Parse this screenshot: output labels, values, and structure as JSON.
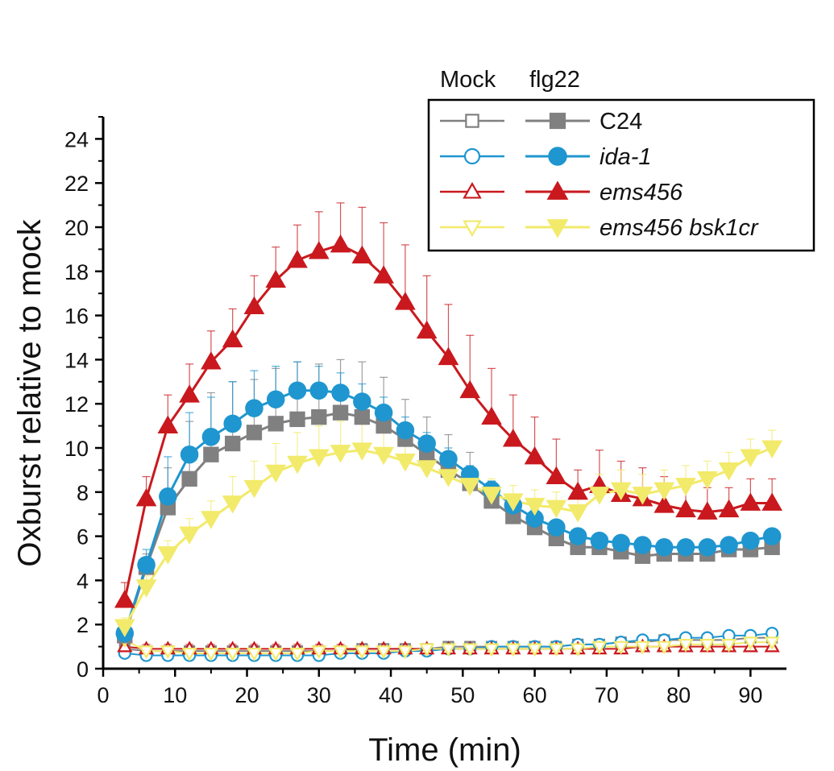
{
  "chart_data": {
    "type": "line",
    "xlabel": "Time (min)",
    "ylabel": "Oxburst relative to mock",
    "xlim": [
      0,
      95
    ],
    "ylim": [
      0,
      25
    ],
    "xticks": [
      0,
      10,
      20,
      30,
      40,
      50,
      60,
      70,
      80,
      90
    ],
    "yticks": [
      0,
      2,
      4,
      6,
      8,
      10,
      12,
      14,
      16,
      18,
      20,
      22,
      24
    ],
    "x": [
      3,
      6,
      9,
      12,
      15,
      18,
      21,
      24,
      27,
      30,
      33,
      36,
      39,
      42,
      45,
      48,
      51,
      54,
      57,
      60,
      63,
      66,
      69,
      72,
      75,
      78,
      81,
      84,
      87,
      90,
      93
    ],
    "legend": {
      "placement": "top-right",
      "mock_header": "Mock",
      "flg22_header": "flg22",
      "entries": [
        {
          "label": "C24",
          "italic": false
        },
        {
          "label": "ida-1",
          "italic": true
        },
        {
          "label": "ems456",
          "italic": true
        },
        {
          "label": "ems456 bsk1cr",
          "italic": true
        }
      ]
    },
    "series": [
      {
        "name": "C24 flg22",
        "color": "#808080",
        "marker": "square",
        "filled": true,
        "values": [
          1.5,
          4.6,
          7.3,
          8.6,
          9.7,
          10.2,
          10.7,
          11.1,
          11.3,
          11.4,
          11.6,
          11.4,
          11.0,
          10.4,
          9.7,
          9.0,
          8.4,
          7.6,
          6.9,
          6.4,
          5.9,
          5.5,
          5.5,
          5.3,
          5.1,
          5.2,
          5.2,
          5.2,
          5.4,
          5.4,
          5.5
        ],
        "error_up": [
          0.5,
          0.6,
          1.8,
          2.6,
          2.8,
          2.8,
          2.4,
          2.5,
          2.6,
          2.4,
          2.4,
          2.5,
          2.2,
          1.8,
          1.7,
          1.6,
          1.4,
          0.9,
          0.7,
          0.5,
          0.4,
          0.3,
          0.4,
          0.4,
          0.4,
          0.4,
          0.4,
          0.4,
          0.3,
          0.3,
          0.3
        ]
      },
      {
        "name": "ida-1 flg22",
        "color": "#1f96cf",
        "marker": "circle",
        "filled": true,
        "values": [
          1.6,
          4.7,
          7.8,
          9.7,
          10.5,
          11.1,
          11.8,
          12.2,
          12.6,
          12.6,
          12.5,
          12.1,
          11.6,
          10.8,
          10.2,
          9.5,
          8.8,
          8.1,
          7.4,
          6.8,
          6.4,
          6.0,
          5.8,
          5.7,
          5.6,
          5.5,
          5.5,
          5.5,
          5.6,
          5.8,
          6.0
        ],
        "error_up": [
          0.5,
          0.7,
          1.8,
          1.9,
          1.8,
          1.9,
          1.7,
          1.5,
          1.3,
          1.1,
          0.9,
          0.8,
          0.7,
          0.6,
          0.5,
          0.5,
          0.4,
          0.4,
          0.4,
          0.4,
          0.3,
          0.3,
          0.3,
          0.3,
          0.3,
          0.3,
          0.3,
          0.3,
          0.3,
          0.3,
          0.3
        ]
      },
      {
        "name": "ems456 flg22",
        "color": "#c9191e",
        "marker": "triangle-up",
        "filled": true,
        "values": [
          3.1,
          7.7,
          11.0,
          12.4,
          13.9,
          14.9,
          16.4,
          17.6,
          18.5,
          18.9,
          19.2,
          18.7,
          17.8,
          16.6,
          15.3,
          14.1,
          12.6,
          11.4,
          10.4,
          9.6,
          8.7,
          8.0,
          8.3,
          7.9,
          7.7,
          7.4,
          7.2,
          7.1,
          7.2,
          7.5,
          7.5
        ],
        "error_up": [
          0.8,
          1.0,
          1.4,
          1.4,
          1.4,
          1.4,
          1.4,
          1.5,
          1.6,
          1.8,
          1.9,
          2.2,
          2.4,
          2.6,
          2.5,
          2.4,
          2.5,
          2.2,
          2.0,
          1.8,
          1.7,
          1.0,
          1.6,
          1.5,
          1.4,
          1.3,
          1.2,
          1.1,
          1.0,
          1.1,
          1.1
        ]
      },
      {
        "name": "ems456 bsk1cr flg22",
        "color": "#f2ea6a",
        "marker": "triangle-down",
        "filled": true,
        "values": [
          1.9,
          3.7,
          5.2,
          6.1,
          6.8,
          7.5,
          8.2,
          8.9,
          9.3,
          9.6,
          9.8,
          9.9,
          9.7,
          9.4,
          9.1,
          8.7,
          8.3,
          7.9,
          7.6,
          7.4,
          7.3,
          7.1,
          7.9,
          8.1,
          7.9,
          8.1,
          8.3,
          8.6,
          9.0,
          9.6,
          10.0
        ],
        "error_up": [
          0.4,
          0.5,
          0.6,
          0.7,
          0.8,
          1.2,
          1.2,
          1.3,
          1.4,
          1.4,
          1.4,
          1.3,
          1.2,
          1.1,
          1.0,
          0.9,
          0.8,
          0.7,
          0.7,
          0.7,
          0.7,
          0.6,
          0.9,
          0.9,
          0.9,
          0.9,
          0.9,
          0.8,
          0.8,
          0.8,
          0.8
        ]
      },
      {
        "name": "C24 Mock",
        "color": "#808080",
        "marker": "square",
        "filled": false,
        "values": [
          0.9,
          0.8,
          0.8,
          0.8,
          0.8,
          0.8,
          0.8,
          0.8,
          0.8,
          0.8,
          0.8,
          0.9,
          0.9,
          0.9,
          0.9,
          1.0,
          1.0,
          1.0,
          1.0,
          1.0,
          1.0,
          1.1,
          1.1,
          1.2,
          1.2,
          1.3,
          1.3,
          1.3,
          1.3,
          1.4,
          1.4
        ],
        "error_up": [
          0.2,
          0.2,
          0.2,
          0.2,
          0.2,
          0.2,
          0.2,
          0.2,
          0.2,
          0.2,
          0.2,
          0.2,
          0.2,
          0.2,
          0.2,
          0.2,
          0.2,
          0.2,
          0.2,
          0.2,
          0.2,
          0.2,
          0.2,
          0.2,
          0.2,
          0.2,
          0.2,
          0.2,
          0.2,
          0.2,
          0.2
        ]
      },
      {
        "name": "ida-1 Mock",
        "color": "#1f96cf",
        "marker": "circle",
        "filled": false,
        "values": [
          0.7,
          0.6,
          0.6,
          0.6,
          0.6,
          0.6,
          0.6,
          0.6,
          0.6,
          0.6,
          0.7,
          0.7,
          0.7,
          0.8,
          0.8,
          0.9,
          0.9,
          1.0,
          1.0,
          1.0,
          1.0,
          1.1,
          1.1,
          1.2,
          1.3,
          1.3,
          1.4,
          1.4,
          1.5,
          1.5,
          1.6
        ],
        "error_up": [
          0.2,
          0.2,
          0.2,
          0.2,
          0.2,
          0.2,
          0.2,
          0.2,
          0.2,
          0.2,
          0.2,
          0.2,
          0.2,
          0.2,
          0.2,
          0.2,
          0.2,
          0.2,
          0.2,
          0.2,
          0.2,
          0.2,
          0.2,
          0.2,
          0.2,
          0.2,
          0.2,
          0.2,
          0.2,
          0.2,
          0.2
        ]
      },
      {
        "name": "ems456 Mock",
        "color": "#c9191e",
        "marker": "triangle-up",
        "filled": false,
        "values": [
          1.0,
          0.9,
          0.9,
          0.9,
          0.9,
          0.9,
          0.9,
          0.9,
          0.9,
          0.9,
          0.9,
          0.9,
          0.9,
          0.9,
          0.9,
          0.9,
          0.9,
          0.9,
          0.9,
          0.9,
          0.9,
          0.9,
          0.9,
          0.9,
          1.0,
          1.0,
          1.0,
          1.0,
          1.0,
          1.0,
          1.0
        ],
        "error_up": [
          0.2,
          0.2,
          0.2,
          0.2,
          0.2,
          0.2,
          0.2,
          0.2,
          0.2,
          0.2,
          0.2,
          0.2,
          0.2,
          0.2,
          0.2,
          0.2,
          0.2,
          0.2,
          0.2,
          0.2,
          0.2,
          0.2,
          0.2,
          0.2,
          0.2,
          0.2,
          0.2,
          0.2,
          0.2,
          0.2,
          0.2
        ]
      },
      {
        "name": "ems456 bsk1cr Mock",
        "color": "#f2ea6a",
        "marker": "triangle-down",
        "filled": false,
        "values": [
          1.3,
          0.8,
          0.8,
          0.7,
          0.7,
          0.7,
          0.7,
          0.7,
          0.7,
          0.8,
          0.8,
          0.8,
          0.8,
          0.8,
          0.9,
          0.9,
          0.9,
          0.9,
          0.9,
          0.9,
          0.9,
          0.9,
          1.0,
          1.0,
          1.0,
          1.0,
          1.1,
          1.1,
          1.1,
          1.2,
          1.2
        ],
        "error_up": [
          0.2,
          0.2,
          0.2,
          0.2,
          0.2,
          0.2,
          0.2,
          0.2,
          0.2,
          0.2,
          0.2,
          0.2,
          0.2,
          0.2,
          0.2,
          0.2,
          0.2,
          0.2,
          0.2,
          0.2,
          0.2,
          0.2,
          0.2,
          0.2,
          0.2,
          0.2,
          0.2,
          0.2,
          0.2,
          0.2,
          0.2
        ]
      }
    ]
  }
}
